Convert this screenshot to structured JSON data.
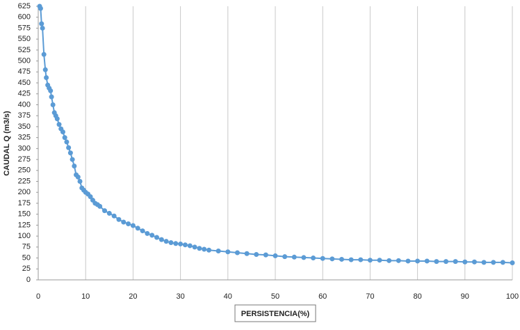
{
  "chart_data": {
    "type": "line",
    "x_label": "PERSISTENCIA(%)",
    "y_label": "CAUDAL Q (m3/s)",
    "xlim": [
      0,
      100
    ],
    "xticks": [
      0,
      10,
      20,
      30,
      40,
      50,
      60,
      70,
      80,
      90,
      100
    ],
    "ylim": [
      0,
      625
    ],
    "yticks": [
      0,
      25,
      50,
      75,
      100,
      125,
      150,
      175,
      200,
      225,
      250,
      275,
      300,
      325,
      350,
      375,
      400,
      425,
      450,
      475,
      500,
      525,
      550,
      575,
      600,
      625
    ],
    "grid": "x",
    "series": [
      {
        "color": "#5b9bd5",
        "x": [
          0.3,
          0.5,
          0.7,
          0.9,
          1.2,
          1.5,
          1.7,
          2,
          2.3,
          2.6,
          2.8,
          3.1,
          3.4,
          3.7,
          4,
          4.4,
          4.8,
          5.2,
          5.6,
          6,
          6.4,
          6.8,
          7.2,
          7.6,
          8,
          8.4,
          8.8,
          9.2,
          9.6,
          10,
          10.5,
          11,
          11.5,
          12,
          12.5,
          13,
          14,
          15,
          16,
          17,
          18,
          19,
          20,
          21,
          22,
          23,
          24,
          25,
          26,
          27,
          28,
          29,
          30,
          31,
          32,
          33,
          34,
          35,
          36,
          38,
          40,
          42,
          44,
          46,
          48,
          50,
          52,
          54,
          56,
          58,
          60,
          62,
          64,
          66,
          68,
          70,
          72,
          74,
          76,
          78,
          80,
          82,
          84,
          86,
          88,
          90,
          92,
          94,
          96,
          98,
          100
        ],
        "values": [
          625,
          620,
          585,
          575,
          515,
          480,
          462,
          445,
          438,
          432,
          418,
          400,
          382,
          375,
          368,
          355,
          345,
          338,
          325,
          315,
          302,
          290,
          275,
          260,
          240,
          235,
          225,
          210,
          205,
          200,
          196,
          190,
          182,
          175,
          172,
          168,
          158,
          152,
          146,
          138,
          132,
          128,
          124,
          118,
          112,
          106,
          102,
          97,
          92,
          88,
          85,
          83,
          82,
          80,
          78,
          75,
          72,
          70,
          68,
          66,
          64,
          62,
          60,
          58,
          57,
          55,
          53,
          52,
          51,
          50,
          49,
          48,
          47,
          46,
          46,
          45,
          45,
          44,
          44,
          43,
          43,
          43,
          42,
          42,
          42,
          41,
          41,
          40,
          40,
          40,
          39
        ]
      }
    ]
  }
}
